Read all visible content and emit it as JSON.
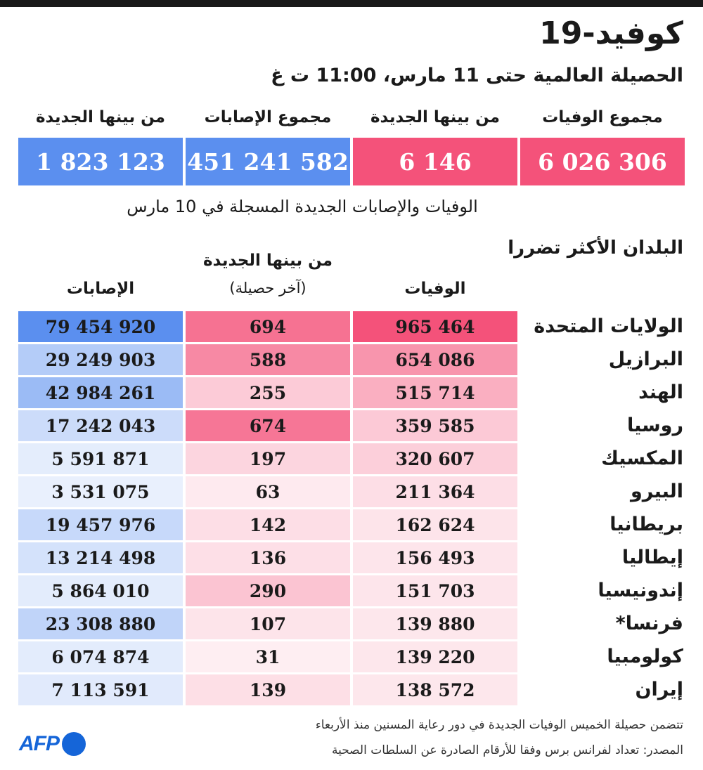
{
  "title": "كوفيد-19",
  "subtitle": "الحصيلة العالمية حتى 11 مارس، 11:00 ت غ",
  "summary": {
    "deaths_label": "مجموع الوفيات",
    "deaths_value": "6 026 306",
    "new_deaths_label": "من بينها الجديدة",
    "new_deaths_value": "6 146",
    "cases_label": "مجموع الإصابات",
    "cases_value": "451 241 582",
    "new_cases_label": "من بينها الجديدة",
    "new_cases_value": "1 823 123"
  },
  "note_new": "الوفيات والإصابات الجديدة المسجلة في 10 مارس",
  "section_title": "البلدان الأكثر تضررا",
  "columns": {
    "deaths": "الوفيات",
    "new_label": "من بينها الجديدة",
    "new_sub": "(آخر حصيلة)",
    "cases": "الإصابات"
  },
  "colors": {
    "deaths_accent": "#f4527a",
    "cases_accent": "#5b8fef",
    "text": "#1a1a1a"
  },
  "chart_data": {
    "type": "table",
    "columns": [
      "الوفيات",
      "من بينها الجديدة",
      "الإصابات"
    ],
    "rows": [
      {
        "country": "الولايات المتحدة",
        "deaths": 965464,
        "deaths_text": "965 464",
        "new": 694,
        "new_text": "694",
        "cases": 79454920,
        "cases_text": "79 454 920"
      },
      {
        "country": "البرازيل",
        "deaths": 654086,
        "deaths_text": "654 086",
        "new": 588,
        "new_text": "588",
        "cases": 29249903,
        "cases_text": "29 249 903"
      },
      {
        "country": "الهند",
        "deaths": 515714,
        "deaths_text": "515 714",
        "new": 255,
        "new_text": "255",
        "cases": 42984261,
        "cases_text": "42 984 261"
      },
      {
        "country": "روسيا",
        "deaths": 359585,
        "deaths_text": "359 585",
        "new": 674,
        "new_text": "674",
        "cases": 17242043,
        "cases_text": "17 242 043"
      },
      {
        "country": "المكسيك",
        "deaths": 320607,
        "deaths_text": "320 607",
        "new": 197,
        "new_text": "197",
        "cases": 5591871,
        "cases_text": "5 591 871"
      },
      {
        "country": "البيرو",
        "deaths": 211364,
        "deaths_text": "211 364",
        "new": 63,
        "new_text": "63",
        "cases": 3531075,
        "cases_text": "3 531 075"
      },
      {
        "country": "بريطانيا",
        "deaths": 162624,
        "deaths_text": "162 624",
        "new": 142,
        "new_text": "142",
        "cases": 19457976,
        "cases_text": "19 457 976"
      },
      {
        "country": "إيطاليا",
        "deaths": 156493,
        "deaths_text": "156 493",
        "new": 136,
        "new_text": "136",
        "cases": 13214498,
        "cases_text": "13 214 498"
      },
      {
        "country": "إندونيسيا",
        "deaths": 151703,
        "deaths_text": "151 703",
        "new": 290,
        "new_text": "290",
        "cases": 5864010,
        "cases_text": "5 864 010"
      },
      {
        "country": "فرنسا*",
        "deaths": 139880,
        "deaths_text": "139 880",
        "new": 107,
        "new_text": "107",
        "cases": 23308880,
        "cases_text": "23 308 880"
      },
      {
        "country": "كولومبيا",
        "deaths": 139220,
        "deaths_text": "139 220",
        "new": 31,
        "new_text": "31",
        "cases": 6074874,
        "cases_text": "6 074 874"
      },
      {
        "country": "إيران",
        "deaths": 138572,
        "deaths_text": "138 572",
        "new": 139,
        "new_text": "139",
        "cases": 7113591,
        "cases_text": "7 113 591"
      }
    ]
  },
  "footnote": "تتضمن حصيلة الخميس الوفيات الجديدة في دور رعاية المسنين منذ الأربعاء",
  "source": "المصدر: تعداد لفرانس برس وفقا للأرقام الصادرة عن السلطات الصحية",
  "logo_text": "AFP"
}
